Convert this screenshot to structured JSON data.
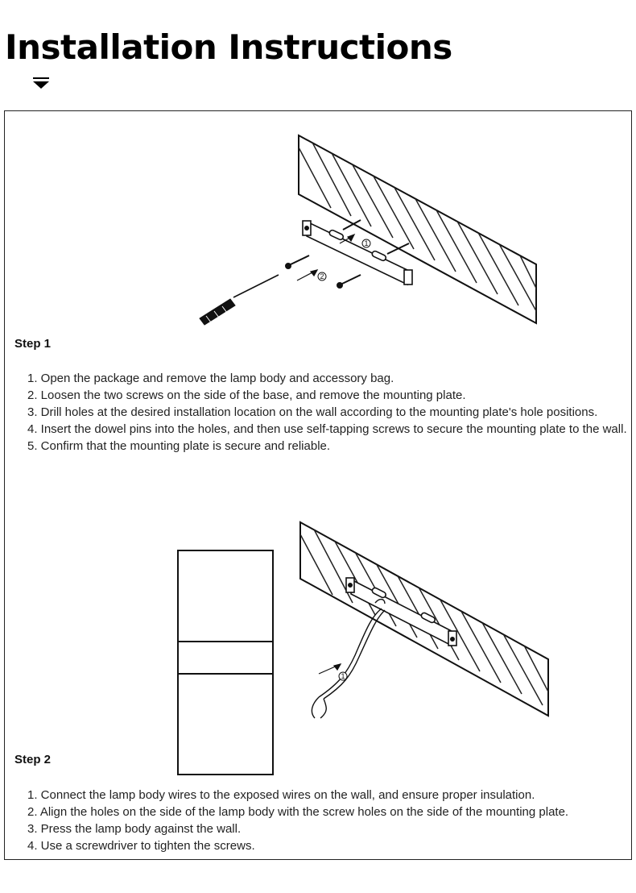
{
  "page": {
    "title": "Installation Instructions",
    "dropdown_icon": "triangle-down-icon"
  },
  "step1": {
    "heading": "Step 1",
    "figure": {
      "callouts": [
        "1",
        "2"
      ]
    },
    "items": [
      "1. Open the package and remove the lamp body and accessory bag.",
      "2. Loosen the two screws on the side of the base, and remove the mounting plate.",
      "3. Drill holes at the desired installation location on the wall according to the mounting plate's hole positions.",
      "4. Insert the dowel pins into the holes, and then use self-tapping screws to secure the mounting plate to the wall.",
      "5. Confirm that the mounting plate is secure and reliable."
    ]
  },
  "step2": {
    "heading": "Step 2",
    "figure": {
      "callouts": [
        "1"
      ]
    },
    "items": [
      "1. Connect the lamp body wires to the exposed wires on the wall, and ensure proper insulation.",
      "2. Align the holes on the side of the lamp body with the screw holes on the side of the mounting plate.",
      "3. Press the lamp body against the wall.",
      "4. Use a screwdriver to tighten the screws."
    ]
  }
}
